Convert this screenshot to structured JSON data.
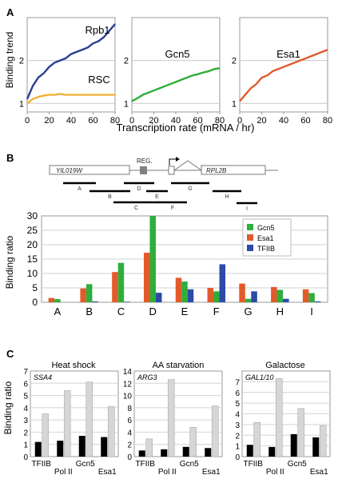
{
  "panel_labels": {
    "a": "A",
    "b": "B",
    "c": "C"
  },
  "colors": {
    "rpb1": "#2b3d96",
    "rsc": "#f0b23c",
    "gcn5": "#2fae3a",
    "esa1": "#e25a2a",
    "tfiib": "#2c4aa8",
    "black_bar": "#000000",
    "gray_bar": "#d6d6d6"
  },
  "panel_a": {
    "ylabel": "Binding trend",
    "xlabel": "Transcription rate (mRNA / hr)"
  },
  "panel_b": {
    "ylabel": "Binding ratio"
  },
  "panel_c": {
    "ylabel": "Binding ratio"
  },
  "gene_map": {
    "gene_left": "YIL019W",
    "gene_right": "RPL2B",
    "reg_label": "REG.",
    "amplicons": [
      "A",
      "B",
      "C",
      "D",
      "E",
      "F",
      "G",
      "H",
      "I"
    ]
  },
  "chart_data": [
    {
      "id": "a1",
      "type": "line",
      "title": "",
      "xlabel": "",
      "ylabel": "",
      "xlim": [
        0,
        80
      ],
      "ylim": [
        0.8,
        3
      ],
      "xticks": [
        0,
        20,
        40,
        60,
        80
      ],
      "yticks": [
        1,
        2
      ],
      "series": [
        {
          "name": "Rpb1",
          "color": "#2b3d96",
          "x": [
            0,
            5,
            10,
            15,
            20,
            25,
            30,
            35,
            40,
            45,
            50,
            55,
            60,
            65,
            70,
            75,
            80
          ],
          "y": [
            1.1,
            1.4,
            1.6,
            1.7,
            1.85,
            1.95,
            2.0,
            2.05,
            2.15,
            2.2,
            2.25,
            2.3,
            2.4,
            2.45,
            2.55,
            2.7,
            2.85
          ]
        },
        {
          "name": "RSC",
          "color": "#f0b23c",
          "x": [
            0,
            5,
            10,
            15,
            20,
            25,
            30,
            35,
            40,
            45,
            50,
            55,
            60,
            65,
            70,
            75,
            80
          ],
          "y": [
            1.0,
            1.1,
            1.15,
            1.18,
            1.2,
            1.2,
            1.22,
            1.2,
            1.2,
            1.2,
            1.2,
            1.2,
            1.2,
            1.2,
            1.2,
            1.2,
            1.2
          ]
        }
      ]
    },
    {
      "id": "a2",
      "type": "line",
      "title": "",
      "xlabel": "",
      "ylabel": "",
      "xlim": [
        0,
        80
      ],
      "ylim": [
        0.8,
        3
      ],
      "xticks": [
        0,
        20,
        40,
        60,
        80
      ],
      "yticks": [
        1,
        2
      ],
      "series": [
        {
          "name": "Gcn5",
          "color": "#2fae3a",
          "x": [
            0,
            5,
            10,
            15,
            20,
            25,
            30,
            35,
            40,
            45,
            50,
            55,
            60,
            65,
            70,
            75,
            80
          ],
          "y": [
            1.05,
            1.12,
            1.2,
            1.25,
            1.3,
            1.35,
            1.4,
            1.45,
            1.5,
            1.55,
            1.6,
            1.65,
            1.68,
            1.72,
            1.75,
            1.8,
            1.82
          ]
        }
      ]
    },
    {
      "id": "a3",
      "type": "line",
      "title": "",
      "xlabel": "",
      "ylabel": "",
      "xlim": [
        0,
        80
      ],
      "ylim": [
        0.8,
        3
      ],
      "xticks": [
        0,
        20,
        40,
        60,
        80
      ],
      "yticks": [
        1,
        2
      ],
      "series": [
        {
          "name": "Esa1",
          "color": "#e25a2a",
          "x": [
            0,
            5,
            10,
            15,
            20,
            25,
            30,
            35,
            40,
            45,
            50,
            55,
            60,
            65,
            70,
            75,
            80
          ],
          "y": [
            1.05,
            1.2,
            1.35,
            1.45,
            1.6,
            1.65,
            1.75,
            1.8,
            1.85,
            1.9,
            1.95,
            2.0,
            2.05,
            2.1,
            2.15,
            2.2,
            2.25
          ]
        }
      ]
    },
    {
      "id": "b",
      "type": "bar",
      "title": "",
      "xlabel": "",
      "ylabel": "Binding ratio",
      "ylim": [
        0,
        30
      ],
      "yticks": [
        0,
        5,
        10,
        15,
        20,
        25,
        30
      ],
      "categories": [
        "A",
        "B",
        "C",
        "D",
        "E",
        "F",
        "G",
        "H",
        "I"
      ],
      "series": [
        {
          "name": "Esa1",
          "color": "#e25a2a",
          "values": [
            1.5,
            4.8,
            10.5,
            17.2,
            8.5,
            5.0,
            6.5,
            5.3,
            4.5
          ]
        },
        {
          "name": "Gcn5",
          "color": "#2fae3a",
          "values": [
            1.1,
            6.3,
            13.7,
            30.0,
            7.2,
            3.8,
            1.2,
            4.3,
            3.2
          ]
        },
        {
          "name": "TFIIB",
          "color": "#2c4aa8",
          "values": [
            0.0,
            0.3,
            0.2,
            3.3,
            4.5,
            13.2,
            3.8,
            1.2,
            0.3
          ]
        }
      ],
      "legend_order": [
        "Gcn5",
        "Esa1",
        "TFIIB"
      ],
      "legend": "top-right"
    },
    {
      "id": "c1",
      "type": "bar",
      "title": "Heat shock",
      "gene_label": "SSA4",
      "ylabel": "Binding ratio",
      "ylim": [
        0,
        7
      ],
      "yticks": [
        0,
        1,
        2,
        3,
        4,
        5,
        6,
        7
      ],
      "categories": [
        "TFIIB",
        "Pol II",
        "Gcn5",
        "Esa1"
      ],
      "series": [
        {
          "name": "black",
          "color": "#000000",
          "values": [
            1.2,
            1.3,
            1.7,
            1.6
          ]
        },
        {
          "name": "gray",
          "color": "#d6d6d6",
          "values": [
            3.5,
            5.4,
            6.1,
            4.1
          ]
        }
      ]
    },
    {
      "id": "c2",
      "type": "bar",
      "title": "AA starvation",
      "gene_label": "ARG3",
      "ylabel": "",
      "ylim": [
        0,
        14
      ],
      "yticks": [
        0,
        2,
        4,
        6,
        8,
        10,
        12,
        14
      ],
      "categories": [
        "TFIIB",
        "Pol II",
        "Gcn5",
        "Esa1"
      ],
      "series": [
        {
          "name": "black",
          "color": "#000000",
          "values": [
            1.0,
            1.2,
            1.6,
            1.4
          ]
        },
        {
          "name": "gray",
          "color": "#d6d6d6",
          "values": [
            2.9,
            12.6,
            4.8,
            8.3
          ]
        }
      ]
    },
    {
      "id": "c3",
      "type": "bar",
      "title": "Galactose",
      "gene_label": "GAL1/10",
      "ylabel": "",
      "ylim": [
        0,
        8
      ],
      "yticks": [
        0,
        1,
        2,
        3,
        4,
        5,
        6,
        7
      ],
      "categories": [
        "TFIIB",
        "Pol II",
        "Gcn5",
        "Esa1"
      ],
      "series": [
        {
          "name": "black",
          "color": "#000000",
          "values": [
            1.1,
            0.9,
            2.1,
            1.8
          ]
        },
        {
          "name": "gray",
          "color": "#d6d6d6",
          "values": [
            3.2,
            7.3,
            4.5,
            2.9
          ]
        }
      ]
    }
  ]
}
